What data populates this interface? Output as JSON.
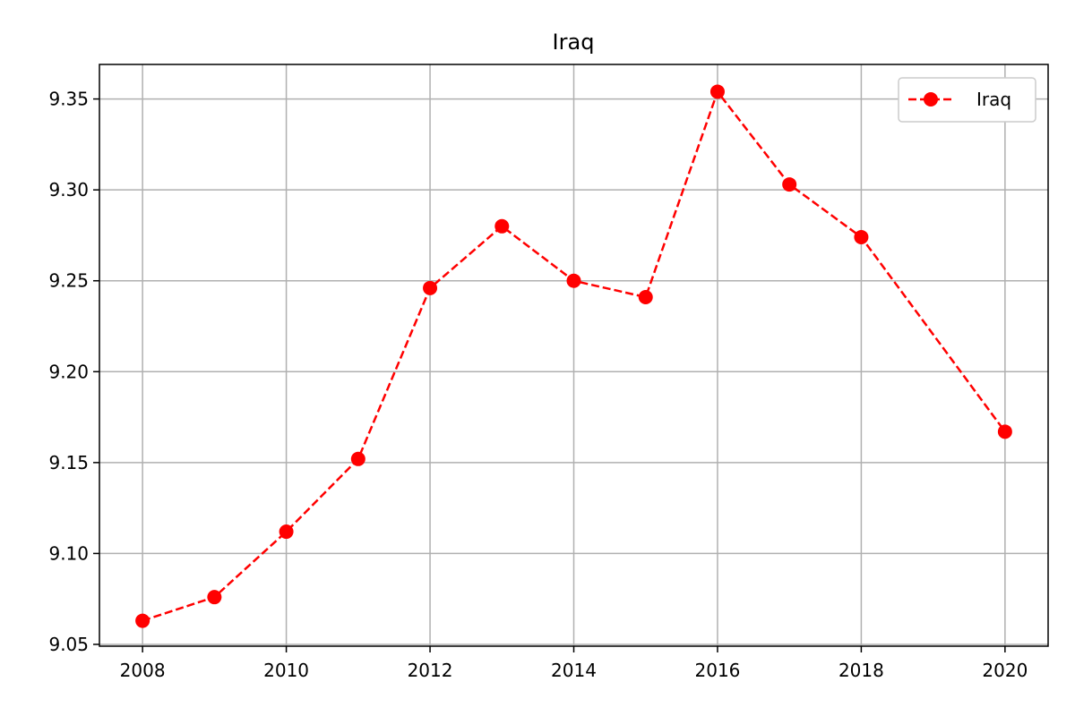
{
  "chart_data": {
    "type": "line",
    "title": "Iraq",
    "xlabel": "",
    "ylabel": "",
    "xlim": [
      2007.4,
      2020.6
    ],
    "ylim": [
      9.049,
      9.369
    ],
    "xticks": [
      2008,
      2010,
      2012,
      2014,
      2016,
      2018,
      2020
    ],
    "yticks": [
      9.05,
      9.1,
      9.15,
      9.2,
      9.25,
      9.3,
      9.35
    ],
    "ytick_labels": [
      "9.05",
      "9.10",
      "9.15",
      "9.20",
      "9.25",
      "9.30",
      "9.35"
    ],
    "grid": true,
    "legend_position": "top-right",
    "series": [
      {
        "name": "Iraq",
        "color": "#ff0000",
        "line_style": "dashed",
        "marker": "circle",
        "x": [
          2008,
          2009,
          2010,
          2011,
          2012,
          2013,
          2014,
          2015,
          2016,
          2017,
          2018,
          2020
        ],
        "y": [
          9.063,
          9.076,
          9.112,
          9.152,
          9.246,
          9.28,
          9.25,
          9.241,
          9.354,
          9.303,
          9.274,
          9.167
        ]
      }
    ]
  }
}
